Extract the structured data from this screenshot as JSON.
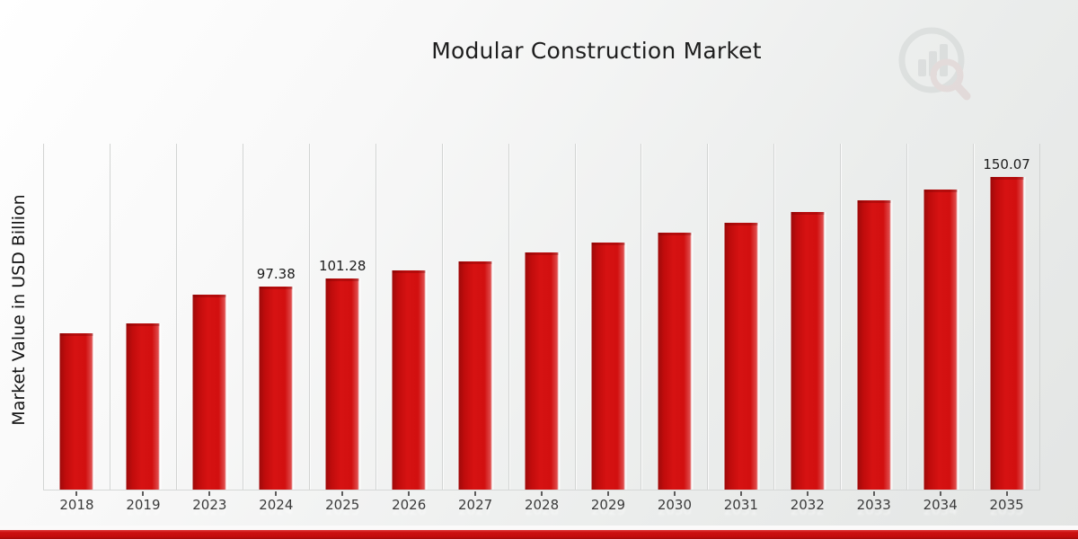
{
  "header": {
    "title": "Modular Construction Market"
  },
  "axes": {
    "y_label": "Market Value in USD Billion"
  },
  "watermark": {
    "name": "market-research-future-logo"
  },
  "colors": {
    "bar_red": "#d01010",
    "bar_edge_dark": "#9e0a0a",
    "footer_strip_red": "#c30d0d",
    "background_light": "#ffffff",
    "background_gray": "#e3e5e4",
    "gridline": "#d2d4d3",
    "label_text": "#3b3b3b"
  },
  "chart_data": {
    "type": "bar",
    "title": "Modular Construction Market",
    "xlabel": "",
    "ylabel": "Market Value in USD Billion",
    "categories": [
      "2018",
      "2019",
      "2023",
      "2024",
      "2025",
      "2026",
      "2027",
      "2028",
      "2029",
      "2030",
      "2031",
      "2032",
      "2033",
      "2034",
      "2035"
    ],
    "values": [
      75.0,
      79.9,
      93.6,
      97.38,
      101.28,
      105.33,
      109.55,
      113.94,
      118.5,
      123.25,
      128.18,
      133.32,
      138.66,
      144.21,
      150.07
    ],
    "point_labels": [
      "",
      "",
      "",
      "97.38",
      "101.28",
      "",
      "",
      "",
      "",
      "",
      "",
      "",
      "",
      "",
      "150.07"
    ],
    "series_name": "Market Value in USD Billion",
    "bar_color": "#d01010",
    "ylim": [
      0,
      166
    ],
    "grid": "vertical",
    "legend": false
  }
}
